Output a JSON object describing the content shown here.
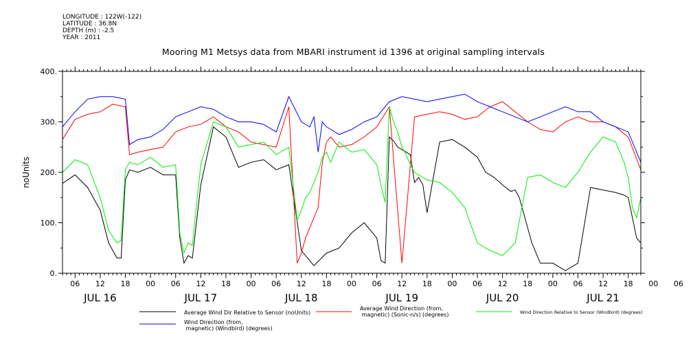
{
  "header": {
    "longitude": "LONGITUDE : 122W(-122)",
    "latitude": "LATITUDE : 36.8N",
    "depth": "DEPTH (m) : -2.5",
    "year": "YEAR : 2011"
  },
  "chart_data": {
    "type": "line",
    "title": "Mooring M1 Metsys data from MBARI instrument id 1396 at original sampling intervals",
    "ylabel": "noUnits",
    "xlabel": "",
    "ylim": [
      0,
      400
    ],
    "yticks": [
      0,
      100,
      200,
      300,
      400
    ],
    "ytick_labels": [
      "0.",
      "100.",
      "200.",
      "300.",
      "400."
    ],
    "xlim_hours": [
      3,
      141
    ],
    "hour_ticks": [
      "06",
      "12",
      "18",
      "00",
      "06",
      "12",
      "18",
      "00",
      "06",
      "12",
      "18",
      "00",
      "06",
      "12",
      "18",
      "00",
      "06",
      "12",
      "18",
      "00",
      "06",
      "12",
      "18",
      "00",
      "06",
      "12",
      "18"
    ],
    "day_labels": [
      "JUL 16",
      "JUL 17",
      "JUL 18",
      "JUL 19",
      "JUL 20",
      "JUL 21"
    ],
    "grid": false,
    "legend_placement": "bottom",
    "series": [
      {
        "name": "Average Wind Dir Relative to Sensor (noUnits)",
        "color": "#000000",
        "x": [
          3,
          6,
          9,
          12,
          14,
          16,
          17,
          18,
          19,
          21,
          24,
          27,
          30,
          31,
          32,
          33,
          34,
          36,
          39,
          42,
          45,
          48,
          51,
          54,
          57,
          60,
          63,
          66,
          69,
          72,
          75,
          78,
          79,
          80,
          81,
          82,
          83,
          84,
          85,
          86,
          87,
          88,
          89,
          90,
          93,
          96,
          99,
          102,
          104,
          105,
          106,
          108,
          110,
          111,
          112,
          113,
          114,
          115,
          117,
          120,
          123,
          126,
          129,
          132,
          135,
          137,
          138,
          139,
          140,
          141
        ],
        "y": [
          178,
          195,
          170,
          125,
          60,
          30,
          30,
          185,
          205,
          200,
          210,
          195,
          195,
          70,
          20,
          35,
          30,
          175,
          290,
          270,
          210,
          220,
          225,
          205,
          215,
          45,
          15,
          40,
          50,
          80,
          100,
          70,
          25,
          20,
          270,
          262,
          250,
          245,
          240,
          235,
          180,
          190,
          175,
          120,
          260,
          265,
          250,
          230,
          200,
          195,
          190,
          175,
          162,
          165,
          150,
          120,
          90,
          60,
          20,
          20,
          5,
          20,
          170,
          165,
          160,
          155,
          150,
          110,
          70,
          60
        ]
      },
      {
        "name": "Average Wind Direction (from, magnetic) (Sonic-n/s) (degrees)",
        "color": "#ff0000",
        "x": [
          3,
          6,
          9,
          12,
          15,
          18,
          19,
          21,
          24,
          27,
          30,
          33,
          36,
          39,
          42,
          45,
          48,
          51,
          54,
          57,
          59,
          60,
          61,
          62,
          63,
          64,
          65,
          66,
          67,
          69,
          72,
          75,
          78,
          81,
          84,
          87,
          90,
          93,
          96,
          99,
          102,
          105,
          108,
          111,
          114,
          117,
          120,
          123,
          126,
          129,
          132,
          135,
          138,
          141
        ],
        "y": [
          265,
          305,
          315,
          320,
          335,
          330,
          235,
          240,
          245,
          250,
          280,
          290,
          295,
          310,
          290,
          280,
          260,
          255,
          250,
          330,
          20,
          40,
          70,
          90,
          110,
          130,
          220,
          260,
          270,
          250,
          255,
          270,
          290,
          330,
          20,
          310,
          315,
          320,
          315,
          305,
          310,
          330,
          340,
          320,
          300,
          285,
          280,
          300,
          310,
          300,
          300,
          290,
          270,
          205
        ]
      },
      {
        "name": "Wind Direction Relative to Sensor (Windbird) (degrees)",
        "color": "#00ee00",
        "x": [
          3,
          6,
          9,
          12,
          14,
          16,
          17,
          18,
          19,
          21,
          24,
          27,
          30,
          31,
          32,
          33,
          34,
          36,
          39,
          42,
          45,
          48,
          51,
          54,
          57,
          59,
          60,
          61,
          62,
          63,
          64,
          65,
          66,
          67,
          69,
          72,
          75,
          78,
          79,
          80,
          81,
          82,
          83,
          84,
          85,
          86,
          87,
          88,
          90,
          93,
          96,
          99,
          102,
          105,
          108,
          111,
          114,
          117,
          120,
          123,
          126,
          129,
          132,
          135,
          137,
          138,
          139,
          140,
          141
        ],
        "y": [
          200,
          225,
          215,
          150,
          85,
          60,
          65,
          205,
          220,
          215,
          230,
          210,
          215,
          80,
          40,
          60,
          55,
          215,
          300,
          290,
          250,
          255,
          260,
          235,
          250,
          105,
          125,
          150,
          160,
          180,
          200,
          230,
          240,
          220,
          260,
          240,
          245,
          215,
          175,
          140,
          330,
          300,
          280,
          250,
          235,
          215,
          200,
          195,
          185,
          180,
          160,
          130,
          60,
          45,
          35,
          60,
          190,
          195,
          180,
          170,
          200,
          240,
          270,
          260,
          220,
          190,
          130,
          110,
          150
        ]
      },
      {
        "name": "Wind Direction (from, magnetic) (Windbird) (degrees)",
        "color": "#0000ff",
        "x": [
          3,
          6,
          9,
          12,
          15,
          18,
          19,
          21,
          24,
          27,
          30,
          33,
          36,
          39,
          42,
          45,
          48,
          51,
          54,
          57,
          60,
          62,
          63,
          64,
          65,
          66,
          69,
          72,
          75,
          78,
          81,
          84,
          87,
          90,
          93,
          96,
          99,
          102,
          105,
          108,
          111,
          114,
          117,
          120,
          123,
          126,
          129,
          132,
          135,
          138,
          141
        ],
        "y": [
          290,
          320,
          345,
          350,
          350,
          345,
          255,
          265,
          270,
          285,
          310,
          320,
          330,
          325,
          310,
          300,
          300,
          295,
          280,
          350,
          300,
          290,
          310,
          240,
          300,
          290,
          275,
          285,
          300,
          310,
          340,
          350,
          345,
          340,
          345,
          350,
          355,
          340,
          330,
          320,
          310,
          300,
          310,
          320,
          330,
          320,
          320,
          300,
          290,
          280,
          220
        ]
      }
    ]
  }
}
